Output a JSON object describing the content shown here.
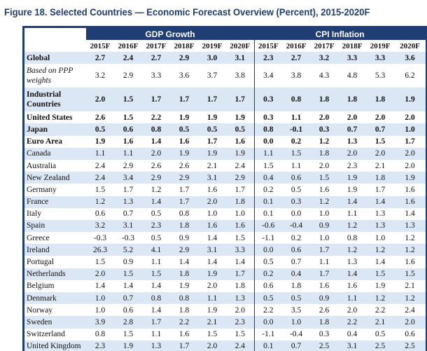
{
  "title": "Figure 18. Selected Countries — Economic Forecast Overview (Percent), 2015-2020F",
  "groups": {
    "gdp": "GDP Growth",
    "cpi": "CPI Inflation"
  },
  "years": [
    "2015F",
    "2016F",
    "2017F",
    "2018F",
    "2019F",
    "2020F",
    "2015F",
    "2016F",
    "2017F",
    "2018F",
    "2019F",
    "2020F"
  ],
  "rows": [
    {
      "name": "Global",
      "style": "bold",
      "values": [
        "2.7",
        "2.4",
        "2.7",
        "2.9",
        "3.0",
        "3.1",
        "2.3",
        "2.7",
        "3.2",
        "3.3",
        "3.3",
        "3.6"
      ]
    },
    {
      "name": "Based on PPP weights",
      "style": "italic",
      "values": [
        "3.2",
        "2.9",
        "3.3",
        "3.6",
        "3.7",
        "3.8",
        "3.4",
        "3.8",
        "4.3",
        "4.8",
        "5.3",
        "6.2"
      ]
    },
    {
      "name": "Industrial Countries",
      "style": "bold",
      "values": [
        "2.0",
        "1.5",
        "1.7",
        "1.7",
        "1.7",
        "1.7",
        "0.3",
        "0.8",
        "1.8",
        "1.8",
        "1.8",
        "1.9"
      ]
    },
    {
      "name": "United States",
      "style": "bold",
      "values": [
        "2.6",
        "1.5",
        "2.2",
        "1.9",
        "1.9",
        "1.9",
        "0.3",
        "1.1",
        "2.0",
        "2.0",
        "2.0",
        "2.0"
      ]
    },
    {
      "name": "Japan",
      "style": "bold",
      "values": [
        "0.5",
        "0.6",
        "0.8",
        "0.5",
        "0.5",
        "0.5",
        "0.8",
        "-0.1",
        "0.3",
        "0.7",
        "0.7",
        "1.0"
      ]
    },
    {
      "name": "Euro Area",
      "style": "bold",
      "values": [
        "1.9",
        "1.6",
        "1.4",
        "1.6",
        "1.7",
        "1.6",
        "0.0",
        "0.2",
        "1.2",
        "1.3",
        "1.5",
        "1.7"
      ]
    },
    {
      "name": "Canada",
      "style": "plain",
      "values": [
        "1.1",
        "1.1",
        "2.0",
        "1.9",
        "1.9",
        "1.9",
        "1.1",
        "1.5",
        "1.8",
        "2.0",
        "2.0",
        "2.0"
      ]
    },
    {
      "name": "Australia",
      "style": "plain",
      "values": [
        "2.4",
        "2.9",
        "2.6",
        "2.6",
        "2.1",
        "2.4",
        "1.5",
        "1.1",
        "2.0",
        "2.3",
        "2.1",
        "2.0"
      ]
    },
    {
      "name": "New Zealand",
      "style": "plain",
      "values": [
        "2.4",
        "3.4",
        "2.9",
        "2.9",
        "3.1",
        "2.9",
        "0.4",
        "0.6",
        "1.5",
        "1.9",
        "1.8",
        "1.9"
      ]
    },
    {
      "name": "Germany",
      "style": "plain",
      "values": [
        "1.5",
        "1.7",
        "1.2",
        "1.7",
        "1.6",
        "1.7",
        "0.2",
        "0.5",
        "1.6",
        "1.9",
        "1.7",
        "1.6"
      ]
    },
    {
      "name": "France",
      "style": "plain",
      "values": [
        "1.2",
        "1.3",
        "1.4",
        "1.7",
        "2.0",
        "1.8",
        "0.1",
        "0.3",
        "1.2",
        "1.4",
        "1.4",
        "1.6"
      ]
    },
    {
      "name": "Italy",
      "style": "plain",
      "values": [
        "0.6",
        "0.7",
        "0.5",
        "0.8",
        "1.0",
        "1.0",
        "0.1",
        "0.0",
        "1.0",
        "1.1",
        "1.3",
        "1.4"
      ]
    },
    {
      "name": "Spain",
      "style": "plain",
      "values": [
        "3.2",
        "3.1",
        "2.3",
        "1.8",
        "1.6",
        "1.6",
        "-0.6",
        "-0.4",
        "0.9",
        "1.2",
        "1.3",
        "1.3"
      ]
    },
    {
      "name": "Greece",
      "style": "plain",
      "values": [
        "-0.3",
        "-0.3",
        "0.5",
        "0.9",
        "1.4",
        "1.5",
        "-1.1",
        "0.2",
        "1.0",
        "0.8",
        "1.0",
        "1.2"
      ]
    },
    {
      "name": "Ireland",
      "style": "plain",
      "values": [
        "26.3",
        "5.2",
        "4.1",
        "2.9",
        "3.1",
        "3.3",
        "0.0",
        "0.6",
        "1.7",
        "1.2",
        "1.2",
        "1.2"
      ]
    },
    {
      "name": "Portugal",
      "style": "plain",
      "values": [
        "1.5",
        "0.9",
        "1.1",
        "1.4",
        "1.4",
        "1.4",
        "0.5",
        "0.7",
        "1.1",
        "1.3",
        "1.4",
        "1.6"
      ]
    },
    {
      "name": "Netherlands",
      "style": "plain",
      "values": [
        "2.0",
        "1.5",
        "1.5",
        "1.8",
        "1.9",
        "1.7",
        "0.2",
        "0.4",
        "1.7",
        "1.4",
        "1.5",
        "1.5"
      ]
    },
    {
      "name": "Belgium",
      "style": "plain",
      "values": [
        "1.4",
        "1.4",
        "1.4",
        "1.9",
        "2.0",
        "1.8",
        "0.6",
        "1.8",
        "1.6",
        "1.6",
        "1.9",
        "2.1"
      ]
    },
    {
      "name": "Denmark",
      "style": "plain",
      "values": [
        "1.0",
        "0.7",
        "0.8",
        "0.8",
        "1.1",
        "1.3",
        "0.5",
        "0.5",
        "0.9",
        "1.1",
        "1.2",
        "1.2"
      ]
    },
    {
      "name": "Norway",
      "style": "plain",
      "values": [
        "1.0",
        "0.6",
        "1.4",
        "1.8",
        "1.9",
        "2.0",
        "2.2",
        "3.5",
        "2.6",
        "2.0",
        "2.2",
        "2.4"
      ]
    },
    {
      "name": "Sweden",
      "style": "plain",
      "values": [
        "3.9",
        "2.8",
        "1.7",
        "2.2",
        "2.1",
        "2.3",
        "0.0",
        "1.0",
        "1.8",
        "2.2",
        "2.1",
        "2.0"
      ]
    },
    {
      "name": "Switzerland",
      "style": "plain",
      "values": [
        "0.8",
        "1.5",
        "1.1",
        "1.6",
        "1.5",
        "1.5",
        "-1.1",
        "-0.4",
        "0.3",
        "0.4",
        "0.5",
        "0.6"
      ]
    },
    {
      "name": "United Kingdom",
      "style": "plain",
      "values": [
        "2.3",
        "1.9",
        "1.3",
        "1.7",
        "2.0",
        "2.4",
        "0.1",
        "0.7",
        "2.5",
        "3.1",
        "2.5",
        "2.5"
      ]
    }
  ],
  "colors": {
    "header": "#1f3e74",
    "shade": "#dbe7f4",
    "title": "#1f3d6e"
  }
}
